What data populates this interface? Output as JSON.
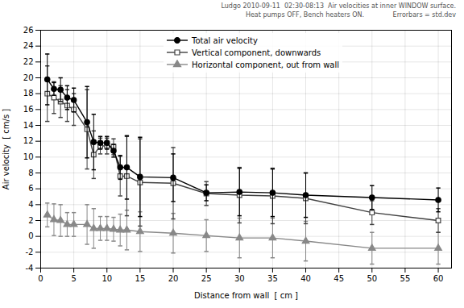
{
  "chart_data": {
    "type": "line",
    "x": [
      1,
      2,
      3,
      4,
      5,
      7,
      8,
      9,
      10,
      11,
      12,
      13,
      15,
      20,
      25,
      30,
      35,
      40,
      50,
      60
    ],
    "series": [
      {
        "name": "Total air velocity",
        "color": "#000000",
        "marker": "circle",
        "values": [
          19.8,
          18.6,
          18.5,
          17.5,
          17.2,
          14.4,
          11.9,
          11.8,
          11.8,
          10.8,
          8.7,
          8.7,
          7.5,
          7.4,
          5.5,
          5.6,
          5.5,
          5.2,
          4.9,
          4.6
        ],
        "errors": [
          3.2,
          0.8,
          1.5,
          1.5,
          1.5,
          4.5,
          3.5,
          0.8,
          0.8,
          0.8,
          1.5,
          4.0,
          5.0,
          3.0,
          1.0,
          3.0,
          3.0,
          2.8,
          1.5,
          1.5
        ]
      },
      {
        "name": "Vertical component, downwards",
        "color": "#404040",
        "marker": "square",
        "values": [
          18.0,
          17.5,
          17.0,
          16.5,
          16.0,
          13.5,
          10.3,
          11.4,
          11.4,
          11.3,
          7.6,
          7.6,
          6.8,
          6.7,
          5.4,
          5.2,
          5.1,
          4.8,
          3.0,
          2.0
        ],
        "errors": [
          3.5,
          2.0,
          2.0,
          2.0,
          2.0,
          5.0,
          3.0,
          1.0,
          1.0,
          1.0,
          2.5,
          5.0,
          5.5,
          4.5,
          1.5,
          3.5,
          3.5,
          3.2,
          1.5,
          1.5
        ]
      },
      {
        "name": "Horizontal component, out from wall",
        "color": "#888888",
        "marker": "triangle",
        "values": [
          2.7,
          2.1,
          2.0,
          1.5,
          1.5,
          1.5,
          1.0,
          1.0,
          1.0,
          0.9,
          0.8,
          0.8,
          0.6,
          0.4,
          0.1,
          -0.2,
          -0.2,
          -0.6,
          -1.5,
          -1.5
        ],
        "errors": [
          1.5,
          2.0,
          2.0,
          1.5,
          1.5,
          2.5,
          2.5,
          1.5,
          1.5,
          1.5,
          2.0,
          2.5,
          2.5,
          2.5,
          2.0,
          2.5,
          2.5,
          2.5,
          2.0,
          2.0
        ]
      }
    ],
    "xlabel": "Distance from wall  [ cm ]",
    "ylabel": "Air velocity  [ cm/s ]",
    "xlim": [
      0,
      62
    ],
    "ylim": [
      -4,
      26
    ],
    "xticks": [
      0,
      5,
      10,
      15,
      20,
      25,
      30,
      35,
      40,
      45,
      50,
      55,
      60
    ],
    "yticks": [
      -4,
      -2,
      0,
      2,
      4,
      6,
      8,
      10,
      12,
      14,
      16,
      18,
      20,
      22,
      24,
      26
    ],
    "grid": true,
    "legend": "upper center",
    "annotations": [
      "Ludgo 2010-09-11  02:30-08:13  Air velocities at inner WINDOW surface.",
      "Heat pumps OFF, Bench heaters ON.              Errorbars = std.dev"
    ]
  }
}
